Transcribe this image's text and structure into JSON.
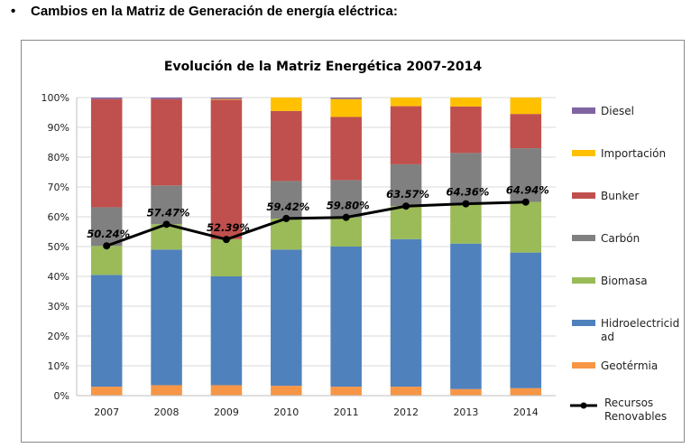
{
  "heading": {
    "bullet": "•",
    "text": "Cambios en la Matriz de Generación de energía eléctrica:"
  },
  "chart_data": {
    "type": "bar",
    "stacked": true,
    "percent_stacked": true,
    "title": "Evolución de la Matriz Energética 2007-2014",
    "xlabel": "",
    "ylabel": "",
    "categories": [
      "2007",
      "2008",
      "2009",
      "2010",
      "2011",
      "2012",
      "2013",
      "2014"
    ],
    "ylim": [
      0,
      100
    ],
    "y_ticks": [
      "0%",
      "10%",
      "20%",
      "30%",
      "40%",
      "50%",
      "60%",
      "70%",
      "80%",
      "90%",
      "100%"
    ],
    "grid": true,
    "legend_position": "right",
    "series": [
      {
        "name": "Geotérmia",
        "color": "#f79646",
        "values": [
          3.0,
          3.5,
          3.5,
          3.3,
          3.0,
          3.0,
          2.2,
          2.5
        ]
      },
      {
        "name": "Hidroelectricidad",
        "legend_label_line1": "Hidroelectricid",
        "legend_label_line2": "ad",
        "color": "#4f81bd",
        "values": [
          37.5,
          45.5,
          36.5,
          45.7,
          47.0,
          49.5,
          48.8,
          45.5
        ]
      },
      {
        "name": "Biomasa",
        "color": "#9bbb59",
        "values": [
          9.7,
          8.5,
          12.5,
          10.4,
          9.8,
          11.1,
          13.4,
          17.0
        ]
      },
      {
        "name": "Carbón",
        "color": "#808080",
        "values": [
          13.0,
          13.0,
          0.0,
          12.6,
          12.5,
          14.0,
          17.0,
          18.0
        ]
      },
      {
        "name": "Bunker",
        "color": "#c0504d",
        "values": [
          36.3,
          29.0,
          46.8,
          23.5,
          21.2,
          19.5,
          15.6,
          11.5
        ]
      },
      {
        "name": "Importación",
        "color": "#ffc000",
        "values": [
          0.0,
          0.0,
          0.2,
          4.5,
          6.0,
          2.9,
          3.0,
          5.5
        ]
      },
      {
        "name": "Diesel",
        "color": "#8064a2",
        "values": [
          0.5,
          0.5,
          0.5,
          0.0,
          0.5,
          0.0,
          0.0,
          0.0
        ]
      }
    ],
    "line_series": {
      "name": "Recursos Renovables",
      "legend_label_line1": "Recursos",
      "legend_label_line2": "Renovables",
      "color": "#000000",
      "values": [
        50.24,
        57.47,
        52.39,
        59.42,
        59.8,
        63.57,
        64.36,
        64.94
      ],
      "labels": [
        "50.24%",
        "57.47%",
        "52.39%",
        "59.42%",
        "59.80%",
        "63.57%",
        "64.36%",
        "64.94%"
      ]
    }
  }
}
